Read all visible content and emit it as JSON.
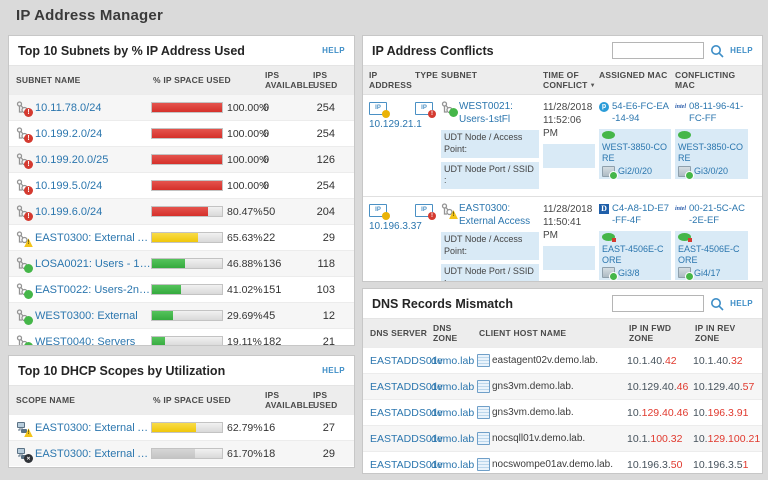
{
  "page": {
    "title": "IP Address Manager",
    "help_label": "HELP",
    "sort_caret": "▼"
  },
  "colors": {
    "critical": "#d5302a",
    "warning": "#f0c70a",
    "healthy": "#35aa3e",
    "link_blue": "#2b76ae",
    "mismatch_red": "#e0392e",
    "highlight_blue": "#d9eaf6"
  },
  "subnets": {
    "title": "Top 10 Subnets by % IP Address Used",
    "columns": [
      "SUBNET NAME",
      "% IP SPACE USED",
      "IPS AVAILABLE",
      "IPS USED"
    ],
    "rows": [
      {
        "name": "10.11.78.0/24",
        "status": "critical",
        "pct": 100,
        "pct_label": "100.00%",
        "available": "0",
        "used": "254",
        "color": "red"
      },
      {
        "name": "10.199.2.0/24",
        "status": "critical",
        "pct": 100,
        "pct_label": "100.00%",
        "available": "0",
        "used": "254",
        "color": "red"
      },
      {
        "name": "10.199.20.0/25",
        "status": "critical",
        "pct": 100,
        "pct_label": "100.00%",
        "available": "0",
        "used": "126",
        "color": "red"
      },
      {
        "name": "10.199.5.0/24",
        "status": "critical",
        "pct": 100,
        "pct_label": "100.00%",
        "available": "0",
        "used": "254",
        "color": "red"
      },
      {
        "name": "10.199.6.0/24",
        "status": "critical",
        "pct": 80.47,
        "pct_label": "80.47%",
        "available": "50",
        "used": "204",
        "color": "red"
      },
      {
        "name": "EAST0300: External Access",
        "status": "warning",
        "pct": 65.63,
        "pct_label": "65.63%",
        "available": "22",
        "used": "29",
        "color": "yellow"
      },
      {
        "name": "LOSA0021: Users - 1stFL",
        "status": "up",
        "pct": 46.88,
        "pct_label": "46.88%",
        "available": "136",
        "used": "118",
        "color": "green"
      },
      {
        "name": "EAST0022: Users-2ndFl",
        "status": "up",
        "pct": 41.02,
        "pct_label": "41.02%",
        "available": "151",
        "used": "103",
        "color": "green"
      },
      {
        "name": "WEST0300: External",
        "status": "up",
        "pct": 29.69,
        "pct_label": "29.69%",
        "available": "45",
        "used": "12",
        "color": "green"
      },
      {
        "name": "WEST0040: Servers",
        "status": "up",
        "pct": 19.11,
        "pct_label": "19.11%",
        "available": "182",
        "used": "21",
        "color": "green"
      }
    ]
  },
  "dhcp": {
    "title": "Top 10 DHCP Scopes by Utilization",
    "columns": [
      "SCOPE NAME",
      "% IP SPACE USED",
      "IPS AVAILABLE",
      "IPS USED"
    ],
    "rows": [
      {
        "name": "EAST0300: External Access",
        "status": "warning",
        "pct": 62.79,
        "pct_label": "62.79%",
        "available": "16",
        "used": "27",
        "color": "yellow"
      },
      {
        "name": "EAST0300: External Access",
        "status": "error",
        "pct": 61.7,
        "pct_label": "61.70%",
        "available": "18",
        "used": "29",
        "color": "gray"
      }
    ]
  },
  "conflicts": {
    "title": "IP Address Conflicts",
    "search_value": "",
    "columns": [
      "IP ADDRESS",
      "TYPE",
      "SUBNET",
      "TIME OF CONFLICT",
      "ASSIGNED MAC",
      "CONFLICTING MAC"
    ],
    "udt_node_label": "UDT Node / Access Point:",
    "udt_port_label": "UDT Node Port / SSID :",
    "rows": [
      {
        "ip": "10.129.21.1",
        "subnet": "WEST0021: Users-1stFl",
        "subnet_status": "up",
        "time": "11/28/2018 11:52:06 PM",
        "assigned": {
          "vendor": "tp-link",
          "mac": "54-E6-FC-EA-14-94",
          "node": "WEST-3850-CORE",
          "node_status": "up",
          "port": "Gi2/0/20"
        },
        "conflicting": {
          "vendor": "intel",
          "mac": "08-11-96-41-FC-FF",
          "node": "WEST-3850-CORE",
          "node_status": "up",
          "port": "Gi3/0/20"
        }
      },
      {
        "ip": "10.196.3.37",
        "subnet": "EAST0300: External Access",
        "subnet_status": "warning",
        "time": "11/28/2018 11:50:41 PM",
        "assigned": {
          "vendor": "dell",
          "mac": "C4-A8-1D-E7-FF-4F",
          "node": "EAST-4506E-CORE",
          "node_status": "warn",
          "port": "Gi3/8"
        },
        "conflicting": {
          "vendor": "intel",
          "mac": "00-21-5C-AC-2E-EF",
          "node": "EAST-4506E-CORE",
          "node_status": "warn",
          "port": "Gi4/17"
        }
      }
    ]
  },
  "dns": {
    "title": "DNS Records Mismatch",
    "search_value": "",
    "columns": [
      "DNS SERVER",
      "DNS ZONE",
      "CLIENT HOST NAME",
      "IP IN FWD ZONE",
      "IP IN REV ZONE"
    ],
    "rows": [
      {
        "server": "EASTADDS01v",
        "zone": "demo.lab",
        "host": "eastagent02v.demo.lab.",
        "fwd_base": "10.1.40.",
        "fwd_diff": "42",
        "rev_base": "10.1.40.",
        "rev_diff": "32"
      },
      {
        "server": "EASTADDS01v",
        "zone": "demo.lab",
        "host": "gns3vm.demo.lab.",
        "fwd_base": "10.129.40.",
        "fwd_diff": "46",
        "rev_base": "10.129.40.",
        "rev_diff": "57"
      },
      {
        "server": "EASTADDS01v",
        "zone": "demo.lab",
        "host": "gns3vm.demo.lab.",
        "fwd_base": "10.",
        "fwd_diff": "129.40.46",
        "rev_base": "10.",
        "rev_diff": "196.3.91"
      },
      {
        "server": "EASTADDS01v",
        "zone": "demo.lab",
        "host": "nocsqll01v.demo.lab.",
        "fwd_base": "10.1.",
        "fwd_diff": "100.32",
        "rev_base": "10.",
        "rev_diff": "129.100.21"
      },
      {
        "server": "EASTADDS01v",
        "zone": "demo.lab",
        "host": "nocswompe01av.demo.lab.",
        "fwd_base": "10.196.3.",
        "fwd_diff": "50",
        "rev_base": "10.196.3.5",
        "rev_diff": "1"
      }
    ]
  }
}
